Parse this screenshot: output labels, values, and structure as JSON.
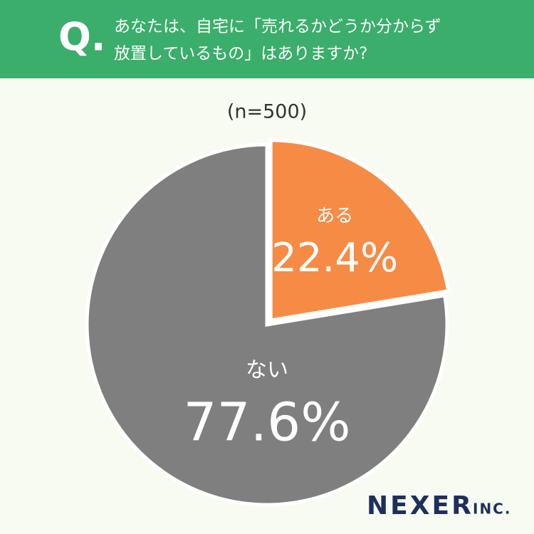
{
  "chart_data": {
    "type": "pie",
    "question_mark": "Q.",
    "title": [
      "あなたは、自宅に「売れるかどうか分からず",
      "放置しているもの」はありますか?"
    ],
    "subtitle": "(n=500)",
    "categories": [
      "ある",
      "ない"
    ],
    "values": [
      22.4,
      77.6
    ],
    "value_labels": [
      "22.4%",
      "77.6%"
    ],
    "colors": [
      "#f68b45",
      "#7f7f7f"
    ],
    "logo": "NEXER",
    "logo_suffix": "INC."
  }
}
